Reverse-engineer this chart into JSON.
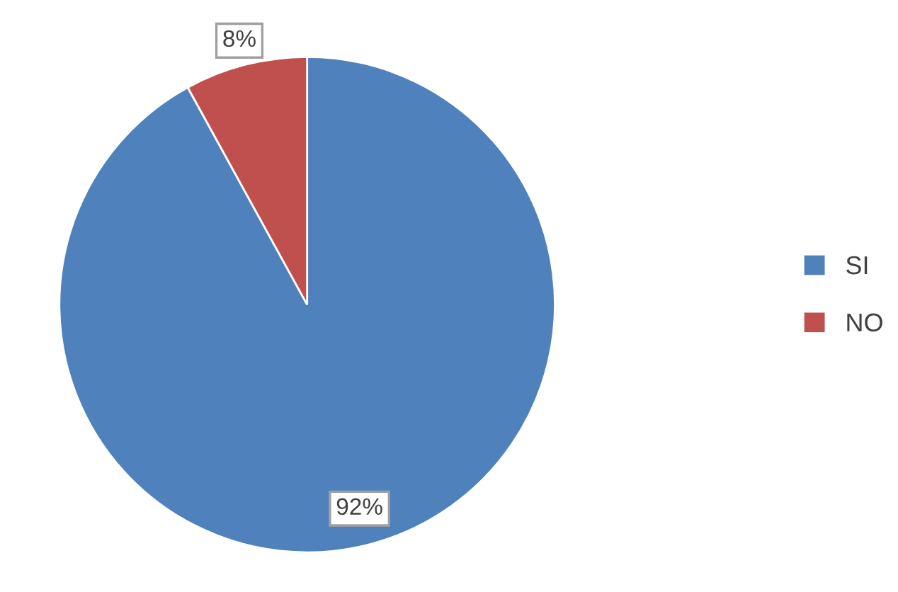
{
  "chart_data": {
    "type": "pie",
    "categories": [
      "SI",
      "NO"
    ],
    "values": [
      92,
      8
    ],
    "colors": [
      "#4f81bd",
      "#c0504d"
    ],
    "value_labels": [
      "92%",
      "8%"
    ],
    "legend": "right"
  }
}
